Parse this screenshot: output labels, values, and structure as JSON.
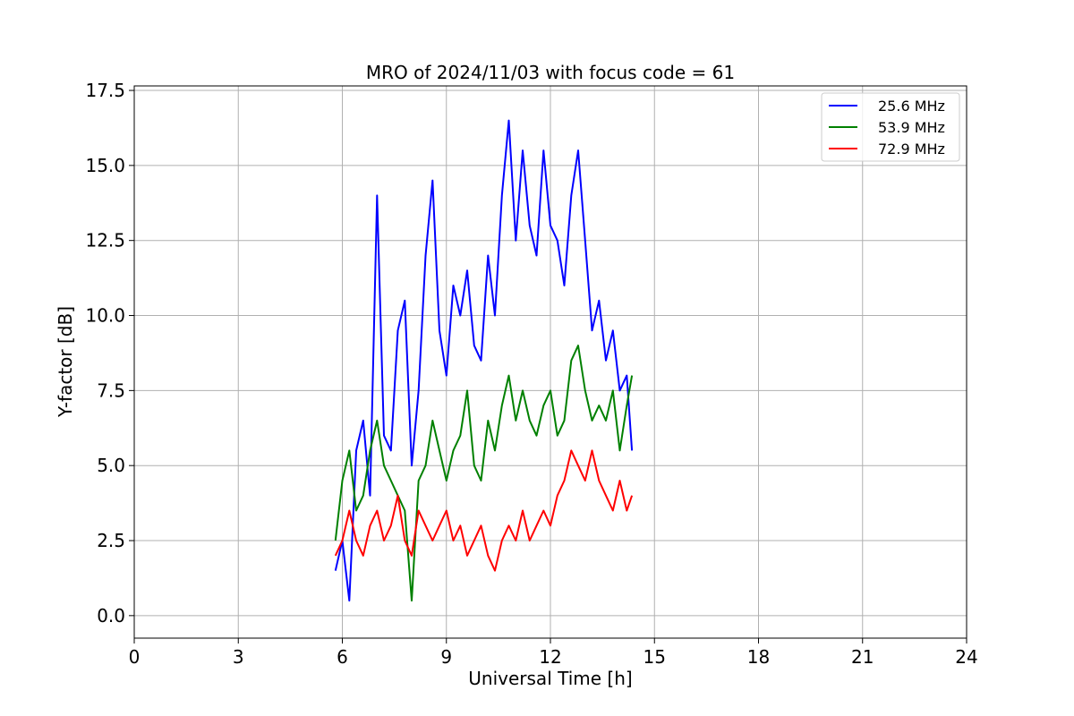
{
  "chart_data": {
    "type": "line",
    "title": "MRO of 2024/11/03 with focus code = 61",
    "xlabel": "Universal Time [h]",
    "ylabel": "Y-factor [dB]",
    "xlim": [
      0,
      24
    ],
    "ylim": [
      -0.75,
      17.65
    ],
    "xticks": [
      0,
      3,
      6,
      9,
      12,
      15,
      18,
      21,
      24
    ],
    "xtick_labels": [
      "0",
      "3",
      "6",
      "9",
      "12",
      "15",
      "18",
      "21",
      "24"
    ],
    "yticks": [
      0,
      2.5,
      5,
      7.5,
      10,
      12.5,
      15,
      17.5
    ],
    "ytick_labels": [
      "0.0",
      "2.5",
      "5.0",
      "7.5",
      "10.0",
      "12.5",
      "15.0",
      "17.5"
    ],
    "grid": true,
    "legend_position": "top-right",
    "series": [
      {
        "name": "25.6 MHz",
        "color": "#0000ff",
        "x": [
          5.8,
          6.0,
          6.2,
          6.4,
          6.6,
          6.8,
          7.0,
          7.2,
          7.4,
          7.6,
          7.8,
          8.0,
          8.2,
          8.4,
          8.6,
          8.8,
          9.0,
          9.2,
          9.4,
          9.6,
          9.8,
          10.0,
          10.2,
          10.4,
          10.6,
          10.8,
          11.0,
          11.2,
          11.4,
          11.6,
          11.8,
          12.0,
          12.2,
          12.4,
          12.6,
          12.8,
          13.0,
          13.2,
          13.4,
          13.6,
          13.8,
          14.0,
          14.2,
          14.35
        ],
        "y": [
          1.5,
          2.5,
          0.5,
          5.5,
          6.5,
          4.0,
          14.0,
          6.0,
          5.5,
          9.5,
          10.5,
          5.0,
          7.5,
          12.0,
          14.5,
          9.5,
          8.0,
          11.0,
          10.0,
          11.5,
          9.0,
          8.5,
          12.0,
          10.0,
          14.0,
          16.5,
          12.5,
          15.5,
          13.0,
          12.0,
          15.5,
          13.0,
          12.5,
          11.0,
          14.0,
          15.5,
          12.5,
          9.5,
          10.5,
          8.5,
          9.5,
          7.5,
          8.0,
          5.5
        ]
      },
      {
        "name": "53.9 MHz",
        "color": "#008000",
        "x": [
          5.8,
          6.0,
          6.2,
          6.4,
          6.6,
          6.8,
          7.0,
          7.2,
          7.4,
          7.6,
          7.8,
          8.0,
          8.2,
          8.4,
          8.6,
          8.8,
          9.0,
          9.2,
          9.4,
          9.6,
          9.8,
          10.0,
          10.2,
          10.4,
          10.6,
          10.8,
          11.0,
          11.2,
          11.4,
          11.6,
          11.8,
          12.0,
          12.2,
          12.4,
          12.6,
          12.8,
          13.0,
          13.2,
          13.4,
          13.6,
          13.8,
          14.0,
          14.2,
          14.35
        ],
        "y": [
          2.5,
          4.5,
          5.5,
          3.5,
          4.0,
          5.5,
          6.5,
          5.0,
          4.5,
          4.0,
          3.5,
          0.5,
          4.5,
          5.0,
          6.5,
          5.5,
          4.5,
          5.5,
          6.0,
          7.5,
          5.0,
          4.5,
          6.5,
          5.5,
          7.0,
          8.0,
          6.5,
          7.5,
          6.5,
          6.0,
          7.0,
          7.5,
          6.0,
          6.5,
          8.5,
          9.0,
          7.5,
          6.5,
          7.0,
          6.5,
          7.5,
          5.5,
          7.0,
          8.0
        ]
      },
      {
        "name": "72.9 MHz",
        "color": "#ff0000",
        "x": [
          5.8,
          6.0,
          6.2,
          6.4,
          6.6,
          6.8,
          7.0,
          7.2,
          7.4,
          7.6,
          7.8,
          8.0,
          8.2,
          8.4,
          8.6,
          8.8,
          9.0,
          9.2,
          9.4,
          9.6,
          9.8,
          10.0,
          10.2,
          10.4,
          10.6,
          10.8,
          11.0,
          11.2,
          11.4,
          11.6,
          11.8,
          12.0,
          12.2,
          12.4,
          12.6,
          12.8,
          13.0,
          13.2,
          13.4,
          13.6,
          13.8,
          14.0,
          14.2,
          14.35
        ],
        "y": [
          2.0,
          2.5,
          3.5,
          2.5,
          2.0,
          3.0,
          3.5,
          2.5,
          3.0,
          4.0,
          2.5,
          2.0,
          3.5,
          3.0,
          2.5,
          3.0,
          3.5,
          2.5,
          3.0,
          2.0,
          2.5,
          3.0,
          2.0,
          1.5,
          2.5,
          3.0,
          2.5,
          3.5,
          2.5,
          3.0,
          3.5,
          3.0,
          4.0,
          4.5,
          5.5,
          5.0,
          4.5,
          5.5,
          4.5,
          4.0,
          3.5,
          4.5,
          3.5,
          4.0
        ]
      }
    ]
  }
}
